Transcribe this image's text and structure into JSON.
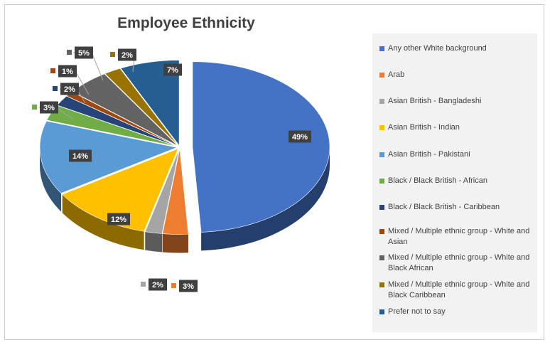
{
  "chart_data": {
    "type": "pie",
    "title": "Employee Ethnicity",
    "legend_position": "right",
    "slices": [
      {
        "name": "Any other White background",
        "value": 49,
        "label": "49%",
        "color": "#4472c4"
      },
      {
        "name": "Arab",
        "value": 3,
        "label": "3%",
        "color": "#ed7d31"
      },
      {
        "name": "Asian British - Bangladeshi",
        "value": 2,
        "label": "2%",
        "color": "#a5a5a5"
      },
      {
        "name": "Asian British - Indian",
        "value": 12,
        "label": "12%",
        "color": "#ffc000"
      },
      {
        "name": "Asian British - Pakistani",
        "value": 14,
        "label": "14%",
        "color": "#5b9bd5"
      },
      {
        "name": "Black / Black British - African",
        "value": 3,
        "label": "3%",
        "color": "#70ad47"
      },
      {
        "name": "Black / Black British - Caribbean",
        "value": 2,
        "label": "2%",
        "color": "#264478"
      },
      {
        "name": "Mixed / Multiple ethnic group - White and Asian",
        "value": 1,
        "label": "1%",
        "color": "#9e480e"
      },
      {
        "name": "Mixed / Multiple ethnic group - White and Black African",
        "value": 5,
        "label": "5%",
        "color": "#636363"
      },
      {
        "name": "Mixed / Multiple ethnic group - White and Black Caribbean",
        "value": 2,
        "label": "2%",
        "color": "#997300"
      },
      {
        "name": "Prefer not to say",
        "value": 7,
        "label": "7%",
        "color": "#255e91"
      }
    ]
  }
}
